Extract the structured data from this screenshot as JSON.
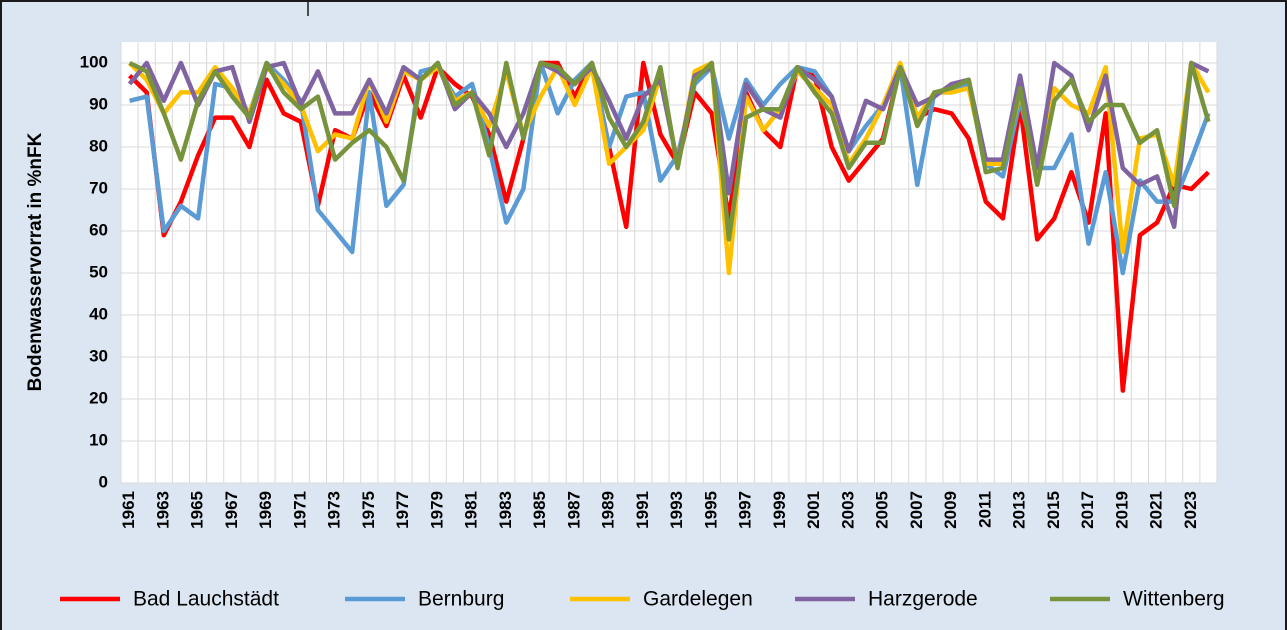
{
  "chart_data": {
    "type": "line",
    "y_label": "Bodenwasservorrat in %nFK",
    "categories": [
      "1961",
      null,
      "1963",
      null,
      "1965",
      null,
      "1967",
      null,
      "1969",
      null,
      "1971",
      null,
      "1973",
      null,
      "1975",
      null,
      "1977",
      null,
      "1979",
      null,
      "1981",
      null,
      "1983",
      null,
      "1985",
      null,
      "1987",
      null,
      "1989",
      null,
      "1991",
      null,
      "1993",
      null,
      "1995",
      null,
      "1997",
      null,
      "1999",
      null,
      "2001",
      null,
      "2003",
      null,
      "2005",
      null,
      "2007",
      null,
      "2009",
      null,
      "2011",
      null,
      "2013",
      null,
      "2015",
      null,
      "2017",
      null,
      "2019",
      null,
      "2021",
      null,
      "2023",
      null
    ],
    "ylim": [
      0,
      105
    ],
    "yticks": [
      0,
      10,
      20,
      30,
      40,
      50,
      60,
      70,
      80,
      90,
      100
    ],
    "grid": true,
    "series": [
      {
        "name": "Bad Lauchstädt",
        "color": "#ff0000",
        "values": [
          97,
          93,
          59,
          67,
          78,
          87,
          87,
          80,
          96,
          88,
          86,
          66,
          84,
          82,
          93,
          85,
          97,
          87,
          99,
          95,
          92,
          83,
          67,
          82,
          100,
          100,
          92,
          100,
          80,
          61,
          100,
          83,
          76,
          93,
          88,
          63,
          93,
          84,
          80,
          99,
          97,
          80,
          72,
          77,
          82,
          99,
          87,
          89,
          88,
          82,
          67,
          63,
          90,
          58,
          63,
          74,
          62,
          88,
          22,
          59,
          62,
          71,
          70,
          74
        ]
      },
      {
        "name": "Bernburg",
        "color": "#5b9bd5",
        "values": [
          91,
          92,
          60,
          66,
          63,
          95,
          94,
          88,
          100,
          96,
          91,
          65,
          60,
          55,
          93,
          66,
          71,
          98,
          99,
          92,
          95,
          80,
          62,
          70,
          100,
          88,
          96,
          100,
          80,
          92,
          93,
          72,
          78,
          95,
          99,
          82,
          96,
          90,
          95,
          99,
          98,
          92,
          79,
          85,
          90,
          99,
          71,
          93,
          93,
          95,
          76,
          73,
          91,
          75,
          75,
          83,
          57,
          74,
          50,
          72,
          67,
          67,
          77,
          88
        ]
      },
      {
        "name": "Gardelegen",
        "color": "#ffc000",
        "values": [
          100,
          96,
          88,
          93,
          93,
          99,
          94,
          88,
          99,
          95,
          90,
          79,
          83,
          82,
          96,
          86,
          98,
          96,
          99,
          91,
          93,
          85,
          98,
          83,
          92,
          99,
          90,
          99,
          76,
          80,
          84,
          97,
          76,
          98,
          100,
          50,
          92,
          84,
          89,
          98,
          94,
          90,
          76,
          82,
          90,
          100,
          87,
          93,
          93,
          94,
          76,
          76,
          93,
          74,
          94,
          90,
          88,
          99,
          55,
          82,
          83,
          71,
          100,
          93
        ]
      },
      {
        "name": "Harzgerode",
        "color": "#8064a2",
        "values": [
          95,
          100,
          91,
          100,
          90,
          98,
          99,
          86,
          99,
          100,
          90,
          98,
          88,
          88,
          96,
          88,
          99,
          96,
          100,
          89,
          93,
          88,
          80,
          88,
          100,
          98,
          95,
          99,
          91,
          82,
          92,
          96,
          76,
          97,
          99,
          69,
          95,
          89,
          87,
          99,
          96,
          92,
          79,
          91,
          89,
          99,
          90,
          92,
          95,
          96,
          77,
          77,
          97,
          75,
          100,
          97,
          84,
          97,
          75,
          71,
          73,
          61,
          100,
          98
        ]
      },
      {
        "name": "Wittenberg",
        "color": "#77933c",
        "values": [
          100,
          98,
          88,
          77,
          91,
          98,
          92,
          87,
          100,
          93,
          89,
          92,
          77,
          81,
          84,
          80,
          72,
          96,
          100,
          90,
          93,
          78,
          100,
          82,
          100,
          99,
          95,
          100,
          87,
          80,
          86,
          99,
          75,
          96,
          100,
          58,
          87,
          89,
          89,
          99,
          93,
          88,
          75,
          81,
          81,
          99,
          85,
          93,
          94,
          96,
          74,
          75,
          94,
          71,
          91,
          96,
          86,
          90,
          90,
          81,
          84,
          66,
          100,
          86
        ]
      }
    ]
  }
}
